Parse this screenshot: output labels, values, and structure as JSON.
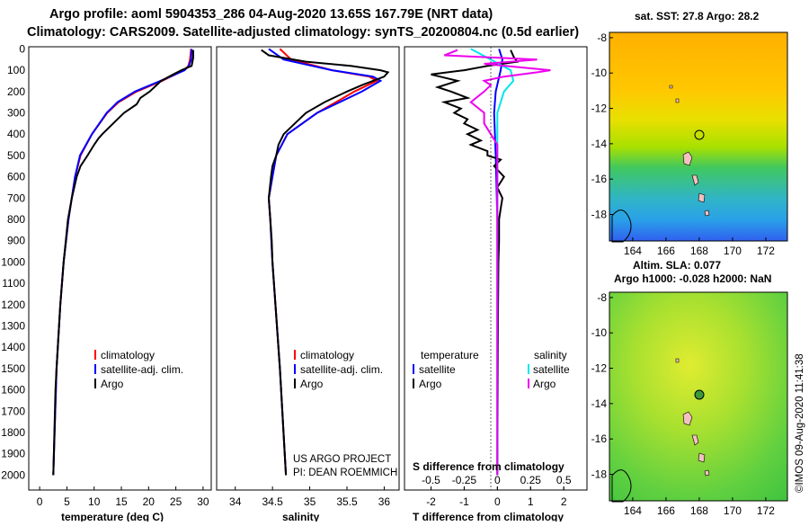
{
  "header": {
    "line1": "Argo profile: aoml 5904353_286 04-Aug-2020 13.65S 167.79E (NRT data)",
    "line2": "Climatology: CARS2009. Satellite-adjusted climatology: synTS_20200804.nc (0.5d earlier)"
  },
  "colors": {
    "climatology": "#ff0000",
    "satellite_adj": "#0000ff",
    "argo": "#000000",
    "t_sat": "#0000ff",
    "t_argo": "#000000",
    "s_sat": "#00e5ee",
    "s_argo": "#ee00ee"
  },
  "depth_ticks": [
    "0",
    "100",
    "200",
    "300",
    "400",
    "500",
    "600",
    "700",
    "800",
    "900",
    "1000",
    "1100",
    "1200",
    "1300",
    "1400",
    "1500",
    "1600",
    "1700",
    "1800",
    "1900",
    "2000"
  ],
  "depth_values": [
    0,
    100,
    200,
    300,
    400,
    500,
    600,
    700,
    800,
    900,
    1000,
    1100,
    1200,
    1300,
    1400,
    1500,
    1600,
    1700,
    1800,
    1900,
    2000
  ],
  "panel1": {
    "xlabel": "temperature (deg C)",
    "xticks": [
      "0",
      "5",
      "10",
      "15",
      "20",
      "25",
      "30"
    ],
    "legend": [
      "climatology",
      "satellite-adj. clim.",
      "Argo"
    ]
  },
  "panel2": {
    "xlabel": "salinity",
    "xticks": [
      "34",
      "34.5",
      "35",
      "35.5",
      "36"
    ],
    "legend": [
      "climatology",
      "satellite-adj. clim.",
      "Argo"
    ],
    "credit1": "US ARGO PROJECT",
    "credit2": "PI: DEAN ROEMMICH"
  },
  "panel3": {
    "xlabel": "T difference from climatology",
    "xticks": [
      "-2",
      "-1",
      "0",
      "1",
      "2"
    ],
    "s_xlabel": "S difference from climatology",
    "s_xticks": [
      "-0.5",
      "-0.25",
      "0",
      "0.25",
      "0.5"
    ],
    "legend_t_title": "temperature",
    "legend_s_title": "salinity",
    "legend_t": [
      "satellite",
      "Argo"
    ],
    "legend_s": [
      "satellite",
      "Argo"
    ]
  },
  "map1": {
    "title": "sat. SST: 27.8 Argo: 28.2",
    "yticks": [
      "-8",
      "-10",
      "-12",
      "-14",
      "-16",
      "-18"
    ],
    "xticks": [
      "164",
      "166",
      "168",
      "170",
      "172"
    ]
  },
  "map2": {
    "title1": "Altim. SLA: 0.077",
    "title2": "Argo h1000: -0.028 h2000: NaN",
    "yticks": [
      "-8",
      "-10",
      "-12",
      "-14",
      "-16",
      "-18"
    ],
    "xticks": [
      "164",
      "166",
      "168",
      "170",
      "172"
    ]
  },
  "watermark": "©IMOS 09-Aug-2020 11:41:38",
  "chart_data": {
    "type": "line",
    "title": "Argo profile: aoml 5904353_286 04-Aug-2020 13.65S 167.79E (NRT data)",
    "ylabel": "depth",
    "ylim": [
      2070,
      -10
    ],
    "panels": [
      {
        "name": "temperature",
        "xlabel": "temperature (deg C)",
        "xlim": [
          -2,
          31.5
        ],
        "series": [
          {
            "name": "climatology",
            "depth": [
              0,
              50,
              80,
              100,
              150,
              200,
              250,
              300,
              400,
              500,
              600,
              800,
              1000,
              1200,
              1500,
              2000
            ],
            "values": [
              27.8,
              27.6,
              27.3,
              26.5,
              22.5,
              17.8,
              14.5,
              12.4,
              9.6,
              7.5,
              6.5,
              5.3,
              4.4,
              3.8,
              3.1,
              2.5
            ]
          },
          {
            "name": "satellite-adj. clim.",
            "depth": [
              0,
              50,
              80,
              100,
              150,
              200,
              250,
              300,
              400,
              500,
              600,
              800,
              1000,
              1200,
              1500,
              2000
            ],
            "values": [
              27.9,
              27.8,
              27.4,
              26.6,
              22.2,
              17.5,
              14.3,
              12.3,
              9.6,
              7.4,
              6.5,
              5.3,
              4.4,
              3.8,
              3.1,
              2.5
            ]
          },
          {
            "name": "Argo",
            "depth": [
              5,
              40,
              80,
              100,
              120,
              150,
              200,
              230,
              260,
              300,
              350,
              400,
              420,
              450,
              500,
              550,
              600,
              700,
              800,
              1000,
              1200,
              1500,
              1600,
              2000
            ],
            "values": [
              28.2,
              28.2,
              27.9,
              26.0,
              24.5,
              22.3,
              20.2,
              18.5,
              17.8,
              15.5,
              13.5,
              11.5,
              10.8,
              10.0,
              8.8,
              7.5,
              6.8,
              5.9,
              5.2,
              4.4,
              3.8,
              3.1,
              2.9,
              2.5
            ]
          }
        ]
      },
      {
        "name": "salinity",
        "xlabel": "salinity",
        "xlim": [
          33.75,
          36.2
        ],
        "series": [
          {
            "name": "climatology",
            "depth": [
              0,
              50,
              100,
              130,
              150,
              200,
              300,
              400,
              500,
              600,
              700,
              800,
              1000,
              1500,
              2000
            ],
            "values": [
              34.6,
              34.75,
              35.3,
              35.8,
              35.9,
              35.6,
              35.1,
              34.7,
              34.55,
              34.5,
              34.45,
              34.47,
              34.5,
              34.6,
              34.68
            ]
          },
          {
            "name": "satellite-adj. clim.",
            "depth": [
              0,
              50,
              100,
              130,
              150,
              200,
              300,
              400,
              500,
              600,
              700,
              800,
              1000,
              1500,
              2000
            ],
            "values": [
              34.45,
              34.65,
              35.3,
              35.85,
              35.95,
              35.7,
              35.1,
              34.7,
              34.55,
              34.5,
              34.45,
              34.47,
              34.5,
              34.6,
              34.68
            ]
          },
          {
            "name": "Argo",
            "depth": [
              5,
              30,
              60,
              80,
              100,
              110,
              130,
              150,
              170,
              200,
              250,
              300,
              350,
              400,
              450,
              500,
              550,
              600,
              700,
              800,
              900,
              1000,
              1500,
              2000
            ],
            "values": [
              34.35,
              34.45,
              34.95,
              35.55,
              35.95,
              36.05,
              36.0,
              35.85,
              35.7,
              35.5,
              35.2,
              34.95,
              34.8,
              34.65,
              34.58,
              34.55,
              34.5,
              34.48,
              34.45,
              34.47,
              34.49,
              34.5,
              34.6,
              34.68
            ]
          }
        ]
      },
      {
        "name": "differences",
        "xlabel": "T difference from climatology",
        "xlim": [
          -2.8,
          2.7
        ],
        "s_xlim": [
          -0.7,
          0.675
        ],
        "series": [
          {
            "name": "T satellite",
            "axis": "T",
            "depth": [
              0,
              50,
              100,
              200,
              300,
              500,
              800,
              1000,
              1200,
              2000
            ],
            "values": [
              0.05,
              0.15,
              0.1,
              -0.05,
              -0.1,
              -0.05,
              0.0,
              0.0,
              0.0,
              0.0
            ]
          },
          {
            "name": "T Argo",
            "axis": "T",
            "depth": [
              5,
              40,
              60,
              80,
              100,
              120,
              150,
              180,
              200,
              230,
              250,
              280,
              300,
              330,
              350,
              380,
              400,
              430,
              450,
              480,
              500,
              520,
              550,
              600,
              650,
              700,
              750,
              800,
              900,
              1000,
              1200,
              1600,
              2000
            ],
            "values": [
              0.4,
              0.5,
              0.6,
              -0.3,
              -1.0,
              -2.0,
              -1.2,
              -1.8,
              -1.4,
              -0.9,
              -1.6,
              -1.1,
              -1.3,
              -0.9,
              -1.0,
              -0.6,
              -0.9,
              -0.5,
              -0.8,
              -0.3,
              -0.3,
              0.1,
              -0.1,
              0.2,
              0.0,
              0.15,
              0.1,
              0.05,
              0.05,
              0.03,
              0.02,
              0.01,
              0.0
            ]
          },
          {
            "name": "S satellite",
            "axis": "S",
            "depth": [
              0,
              50,
              100,
              150,
              200,
              300,
              500,
              800,
              1000,
              1500,
              2000
            ],
            "values": [
              -0.2,
              -0.05,
              0.1,
              0.12,
              0.05,
              0.0,
              0.0,
              0.0,
              0.0,
              0.0,
              0.0
            ]
          },
          {
            "name": "S Argo",
            "axis": "S",
            "depth": [
              5,
              30,
              50,
              70,
              100,
              110,
              130,
              150,
              170,
              200,
              250,
              300,
              350,
              400,
              450,
              500,
              600,
              700,
              800,
              1000,
              1500,
              2000
            ],
            "values": [
              -0.3,
              -0.4,
              0.3,
              -0.1,
              0.4,
              0.3,
              0.05,
              -0.1,
              -0.05,
              -0.1,
              -0.2,
              -0.1,
              -0.1,
              -0.05,
              0.0,
              0.0,
              0.0,
              0.0,
              0.0,
              0.0,
              0.0,
              0.0
            ]
          }
        ]
      }
    ]
  }
}
